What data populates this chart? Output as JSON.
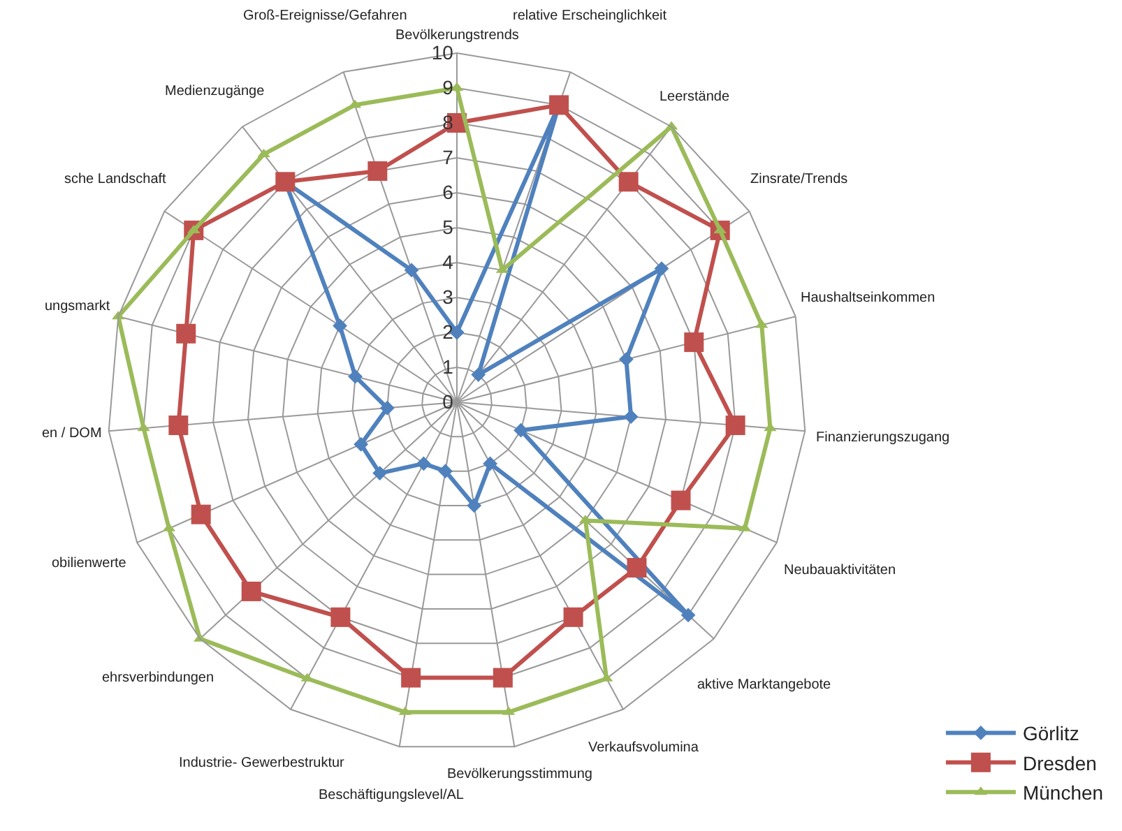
{
  "chart_data": {
    "type": "radar",
    "categories": [
      "Bevölkerungstrends",
      "relative Erscheinglichkeit",
      "Leerstände",
      "Zinsrate/Trends",
      "Haushaltseinkommen",
      "Finanzierungszugang",
      "Neubauaktivitäten",
      "aktive Marktangebote",
      "Verkaufsvolumina",
      "Bevölkerungsstimmung",
      "Beschäftigungslevel/AL",
      "Industrie- Gewerbestruktur",
      "ehrsverbindungen",
      "obilienwerte",
      "en / DOM",
      "ungsmarkt",
      "sche Landschaft",
      "Medienzugänge",
      "Groß-Ereignisse/Gefahren"
    ],
    "series": [
      {
        "name": "Görlitz",
        "color": "#4f81bd",
        "marker": "diamond",
        "values": [
          2,
          9,
          1,
          7,
          5,
          5,
          2,
          9,
          2,
          3,
          2,
          2,
          3,
          3,
          2,
          3,
          4,
          8,
          4
        ]
      },
      {
        "name": "Dresden",
        "color": "#c0504d",
        "marker": "square",
        "values": [
          8,
          9,
          8,
          9,
          7,
          8,
          7,
          7,
          7,
          8,
          8,
          7,
          8,
          8,
          8,
          8,
          9,
          8,
          7
        ]
      },
      {
        "name": "München",
        "color": "#9bbb59",
        "marker": "triangle",
        "values": [
          9,
          4,
          10,
          9,
          9,
          9,
          9,
          5,
          9,
          9,
          9,
          9,
          10,
          9,
          9,
          10,
          9,
          9,
          9
        ]
      }
    ],
    "ylim": [
      0,
      10
    ],
    "yticks": [
      0,
      1,
      2,
      3,
      4,
      5,
      6,
      7,
      8,
      9,
      10
    ],
    "grid": true,
    "legend": "bottom right",
    "line_style": "solid"
  }
}
